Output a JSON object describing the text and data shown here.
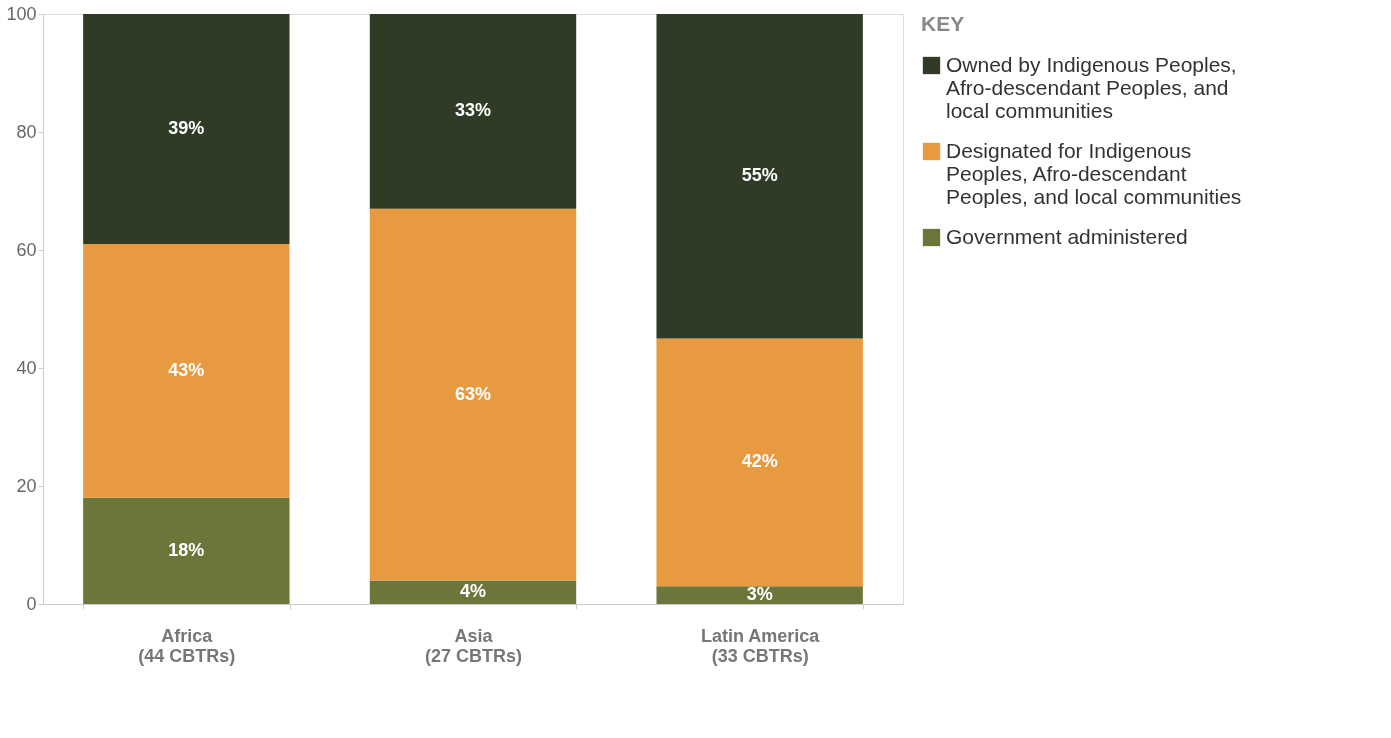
{
  "chart_data": {
    "type": "bar",
    "stacked": true,
    "categories": [
      "Africa\n(44 CBTRs)",
      "Asia\n(27 CBTRs)",
      "Latin America\n(33 CBTRs)"
    ],
    "series": [
      {
        "name": "Government administered",
        "color": "#6b763b",
        "values": [
          18,
          4,
          3
        ],
        "value_labels": [
          "18%",
          "4%",
          "3%"
        ]
      },
      {
        "name": "Designated for Indigenous\nPeoples, Afro-descendant\nPeoples, and local communities",
        "color": "#e89a40",
        "values": [
          43,
          63,
          42
        ],
        "value_labels": [
          "43%",
          "63%",
          "42%"
        ]
      },
      {
        "name": "Owned by Indigenous Peoples,\nAfro-descendant Peoples, and\nlocal communities",
        "color": "#2f3b25",
        "values": [
          39,
          33,
          55
        ],
        "value_labels": [
          "39%",
          "33%",
          "55%"
        ]
      }
    ],
    "ylim": [
      0,
      100
    ],
    "yticks": [
      0,
      20,
      40,
      60,
      80,
      100
    ],
    "grid": false,
    "legend": "top right",
    "legend_title": "KEY"
  }
}
